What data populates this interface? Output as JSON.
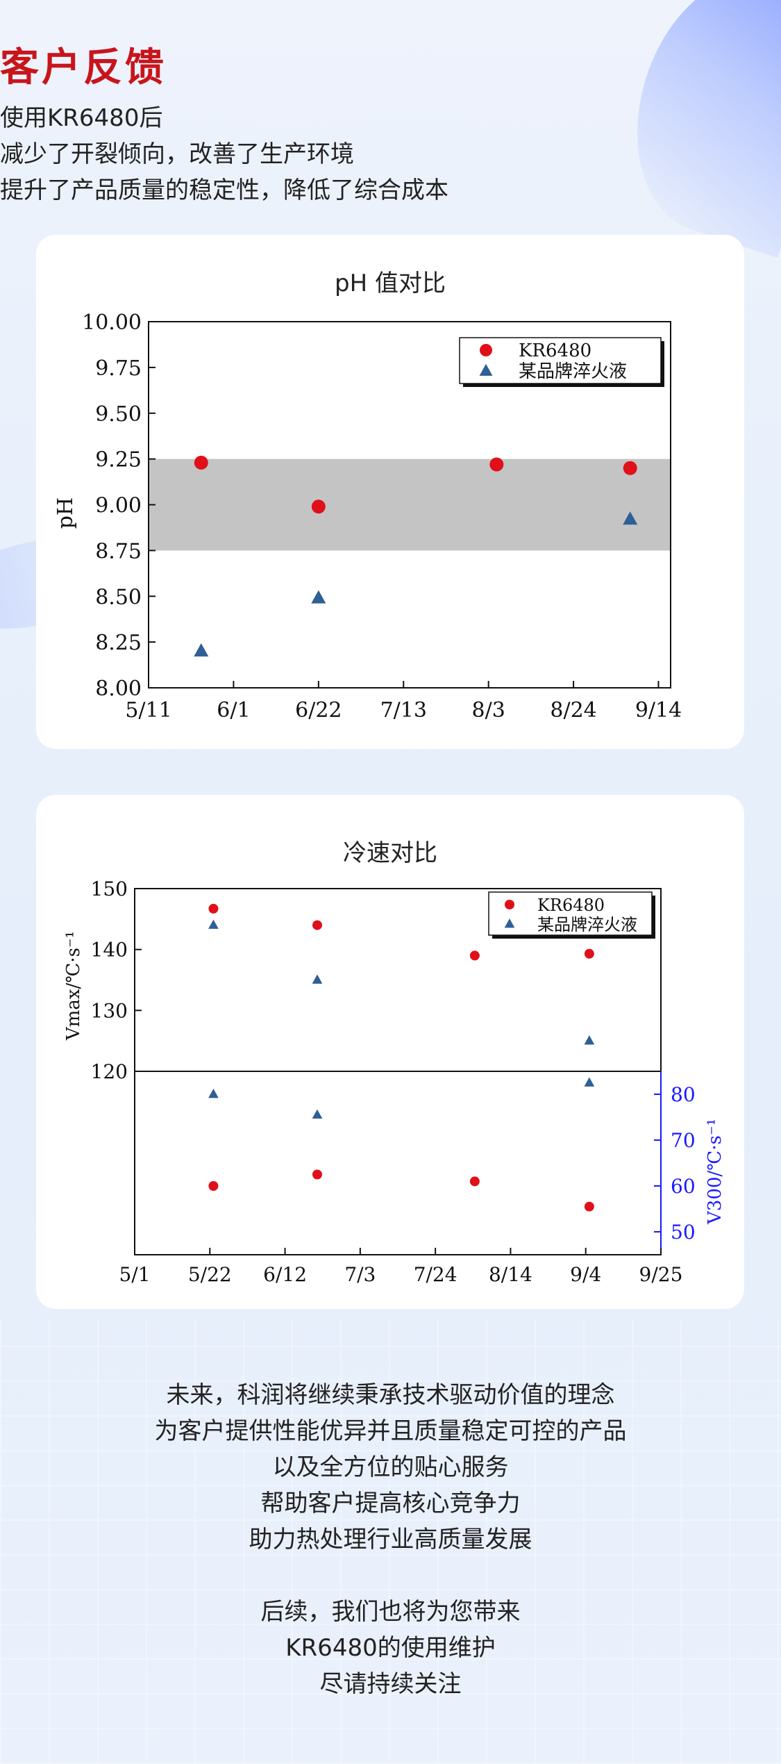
{
  "header": {
    "title": "客户反馈",
    "lines": [
      "使用KR6480后",
      "减少了开裂倾向，改善了生产环境",
      "提升了产品质量的稳定性，降低了综合成本"
    ]
  },
  "chart_data": [
    {
      "type": "scatter",
      "title": "pH 值对比",
      "xlabel": "",
      "ylabel": "pH",
      "x_ticks": [
        "5/11",
        "6/1",
        "6/22",
        "7/13",
        "8/3",
        "8/24",
        "9/14"
      ],
      "y_ticks": [
        "8.00",
        "8.25",
        "8.50",
        "8.75",
        "9.00",
        "9.25",
        "9.50",
        "9.75",
        "10.00"
      ],
      "ylim": [
        8.0,
        10.0
      ],
      "xlim": [
        "5/11",
        "9/17"
      ],
      "band": [
        8.75,
        9.25
      ],
      "band_color": "#c4c4c4",
      "legend_position": "top-right",
      "series": [
        {
          "name": "KR6480",
          "marker": "circle",
          "color": "#e0101a",
          "points": [
            [
              "5/24",
              9.23
            ],
            [
              "6/22",
              8.99
            ],
            [
              "8/5",
              9.22
            ],
            [
              "9/7",
              9.2
            ]
          ]
        },
        {
          "name": "某品牌淬火液",
          "marker": "triangle",
          "color": "#2e5f95",
          "points": [
            [
              "5/24",
              8.2
            ],
            [
              "6/22",
              8.49
            ],
            [
              "9/7",
              8.92
            ]
          ]
        }
      ]
    },
    {
      "type": "scatter",
      "title": "冷速对比",
      "x_ticks": [
        "5/1",
        "5/22",
        "6/12",
        "7/3",
        "7/24",
        "8/14",
        "9/4",
        "9/25"
      ],
      "xlim": [
        "5/1",
        "9/25"
      ],
      "legend_position": "top-right",
      "upper": {
        "ylabel": "Vmax/℃·s⁻¹",
        "ylim": [
          120,
          150
        ],
        "y_ticks": [
          "120",
          "130",
          "140",
          "150"
        ],
        "series": [
          {
            "name": "KR6480",
            "marker": "circle",
            "color": "#e0101a",
            "points": [
              [
                "5/23",
                146.7
              ],
              [
                "6/21",
                144
              ],
              [
                "8/4",
                139
              ],
              [
                "9/5",
                139.3
              ]
            ]
          },
          {
            "name": "某品牌淬火液",
            "marker": "triangle",
            "color": "#2e5f95",
            "points": [
              [
                "5/23",
                144
              ],
              [
                "6/21",
                135
              ],
              [
                "9/5",
                125
              ]
            ]
          }
        ]
      },
      "lower": {
        "ylabel": "V300/℃·s⁻¹",
        "ylabel_color": "#1a1aff",
        "ylim": [
          45,
          85
        ],
        "y_ticks": [
          "50",
          "60",
          "70",
          "80"
        ],
        "series": [
          {
            "name": "KR6480",
            "marker": "circle",
            "color": "#e0101a",
            "points": [
              [
                "5/23",
                60
              ],
              [
                "6/21",
                62.5
              ],
              [
                "8/4",
                61
              ],
              [
                "9/5",
                55.5
              ]
            ]
          },
          {
            "name": "某品牌淬火液",
            "marker": "triangle",
            "color": "#2e5f95",
            "points": [
              [
                "5/23",
                80
              ],
              [
                "6/21",
                75.5
              ],
              [
                "9/5",
                82.5
              ]
            ]
          }
        ]
      }
    }
  ],
  "footer": {
    "lines": [
      "未来，科润将继续秉承技术驱动价值的理念",
      "为客户提供性能优异并且质量稳定可控的产品",
      "以及全方位的贴心服务",
      "帮助客户提高核心竞争力",
      "助力热处理行业高质量发展"
    ],
    "lines2": [
      "后续，我们也将为您带来",
      "KR6480的使用维护",
      "尽请持续关注"
    ]
  }
}
